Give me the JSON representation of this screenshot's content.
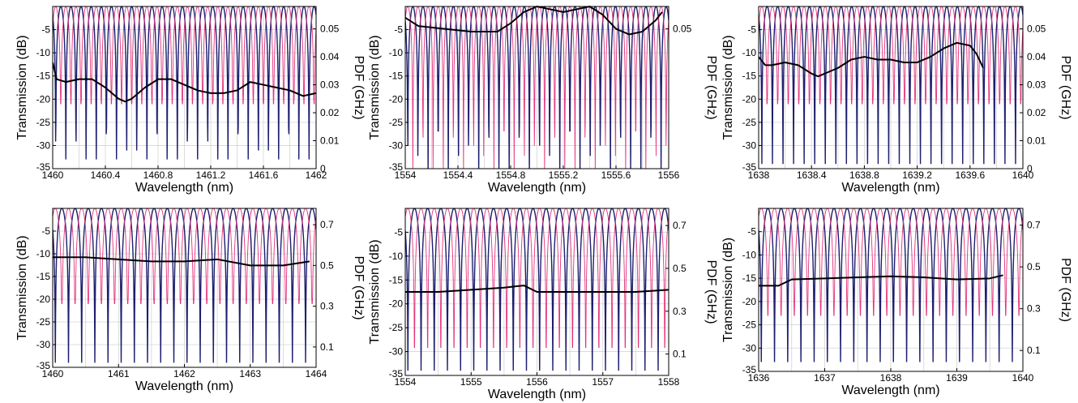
{
  "figure": {
    "colors": {
      "blue": "#1d1e6e",
      "pink": "#e3337a",
      "black": "#000000",
      "grid": "#d4d4d4"
    }
  },
  "chart_data": [
    {
      "type": "line",
      "xlabel": "Wavelength (nm)",
      "ylabel": "Transmission (dB)",
      "y2label": "PDF (GHz)",
      "xlim": [
        1460,
        1462
      ],
      "ylim": [
        -35,
        0
      ],
      "y2lim": [
        0,
        0.058
      ],
      "xticks": [
        1460,
        1460.4,
        1460.8,
        1461.2,
        1461.6,
        1462
      ],
      "xticklabels": [
        "1460",
        "1460.4",
        "1460.8",
        "1461.2",
        "1461.6",
        "1462"
      ],
      "yticks": [
        -5,
        -10,
        -15,
        -20,
        -25,
        -30,
        -35
      ],
      "yticklabels": [
        "-5",
        "-10",
        "-15",
        "-20",
        "-25",
        "-30",
        "-35"
      ],
      "y2ticks": [
        0,
        0.01,
        0.02,
        0.03,
        0.04,
        0.05
      ],
      "y2ticklabels": [
        "0",
        "0.01",
        "0.02",
        "0.03",
        "0.04",
        "0.05"
      ],
      "grid": true,
      "series": [
        {
          "color": "#1d1e6e",
          "axis": "left",
          "kind": "comb",
          "periods": 26,
          "phase": 0.2,
          "depth": -33
        },
        {
          "color": "#e3337a",
          "axis": "left",
          "kind": "comb",
          "periods": 26,
          "phase": 0.7,
          "depth": -21
        },
        {
          "color": "#000000",
          "axis": "right",
          "kind": "line",
          "x": [
            1460,
            1460.03,
            1460.1,
            1460.2,
            1460.3,
            1460.4,
            1460.5,
            1460.55,
            1460.6,
            1460.7,
            1460.8,
            1460.9,
            1461,
            1461.1,
            1461.2,
            1461.3,
            1461.4,
            1461.5,
            1461.6,
            1461.7,
            1461.8,
            1461.9,
            1462
          ],
          "y": [
            0.038,
            0.032,
            0.031,
            0.032,
            0.032,
            0.029,
            0.025,
            0.024,
            0.025,
            0.029,
            0.032,
            0.032,
            0.03,
            0.028,
            0.027,
            0.027,
            0.028,
            0.031,
            0.03,
            0.029,
            0.028,
            0.026,
            0.027
          ]
        }
      ]
    },
    {
      "type": "line",
      "xlabel": "Wavelength (nm)",
      "ylabel": "Transmission (dB)",
      "y2label": "PDF (GHz)",
      "xlim": [
        1554,
        1556
      ],
      "ylim": [
        -35,
        0
      ],
      "y2lim": [
        0,
        0.058
      ],
      "xticks": [
        1554,
        1554.4,
        1554.8,
        1555.2,
        1555.6,
        1556
      ],
      "xticklabels": [
        "1554",
        "1554.4",
        "1554.8",
        "1555.2",
        "1555.6",
        "1556"
      ],
      "yticks": [
        -5,
        -10,
        -15,
        -20,
        -25,
        -30,
        -35
      ],
      "yticklabels": [
        "-5",
        "-10",
        "-15",
        "-20",
        "-25",
        "-30",
        "-35"
      ],
      "y2ticks": [
        0.05
      ],
      "y2ticklabels": [
        "0.05"
      ],
      "grid": true,
      "series": [
        {
          "color": "#1d1e6e",
          "axis": "left",
          "kind": "comb",
          "periods": 26,
          "phase": 0.25,
          "depth": -36
        },
        {
          "color": "#e3337a",
          "axis": "left",
          "kind": "comb",
          "periods": 26,
          "phase": 0.75,
          "depth": -36
        },
        {
          "color": "#000000",
          "axis": "right",
          "kind": "line",
          "x": [
            1554,
            1554.1,
            1554.3,
            1554.5,
            1554.7,
            1554.8,
            1554.9,
            1555,
            1555.1,
            1555.2,
            1555.3,
            1555.4,
            1555.5,
            1555.6,
            1555.7,
            1555.8,
            1555.9,
            1555.95
          ],
          "y": [
            0.054,
            0.051,
            0.05,
            0.049,
            0.049,
            0.052,
            0.056,
            0.058,
            0.057,
            0.056,
            0.057,
            0.058,
            0.055,
            0.05,
            0.048,
            0.049,
            0.053,
            0.056
          ]
        }
      ]
    },
    {
      "type": "line",
      "xlabel": "Wavelength (nm)",
      "ylabel": "Transmission (dB)",
      "y2label": "PDF (GHz)",
      "xlim": [
        1638,
        1640
      ],
      "ylim": [
        -35,
        0
      ],
      "y2lim": [
        0,
        0.058
      ],
      "xticks": [
        1638,
        1638.4,
        1638.8,
        1639.2,
        1639.6,
        1640
      ],
      "xticklabels": [
        "1638",
        "1638.4",
        "1638.8",
        "1639.2",
        "1639.6",
        "1640"
      ],
      "yticks": [
        -5,
        -10,
        -15,
        -20,
        -25,
        -30,
        -35
      ],
      "yticklabels": [
        "-5",
        "-10",
        "-15",
        "-20",
        "-25",
        "-30",
        "-35"
      ],
      "y2ticks": [
        0,
        0.01,
        0.02,
        0.03,
        0.04,
        0.05
      ],
      "y2ticklabels": [
        "0",
        "0.01",
        "0.02",
        "0.03",
        "0.04",
        "0.05"
      ],
      "grid": true,
      "series": [
        {
          "color": "#1d1e6e",
          "axis": "left",
          "kind": "comb",
          "periods": 25,
          "phase": 0.2,
          "depth": -34
        },
        {
          "color": "#e3337a",
          "axis": "left",
          "kind": "comb",
          "periods": 25,
          "phase": 0.7,
          "depth": -21
        },
        {
          "color": "#000000",
          "axis": "right",
          "kind": "line",
          "x": [
            1638,
            1638.05,
            1638.1,
            1638.2,
            1638.3,
            1638.4,
            1638.45,
            1638.5,
            1638.6,
            1638.7,
            1638.8,
            1638.9,
            1639,
            1639.1,
            1639.2,
            1639.3,
            1639.4,
            1639.5,
            1639.6,
            1639.65,
            1639.7
          ],
          "y": [
            0.04,
            0.037,
            0.037,
            0.038,
            0.037,
            0.034,
            0.033,
            0.034,
            0.036,
            0.039,
            0.04,
            0.039,
            0.039,
            0.038,
            0.038,
            0.04,
            0.043,
            0.045,
            0.044,
            0.041,
            0.036
          ]
        }
      ]
    },
    {
      "type": "line",
      "xlabel": "Wavelength (nm)",
      "ylabel": "Transmission (dB)",
      "y2label": "PDF (GHz)",
      "xlim": [
        1460,
        1464
      ],
      "ylim": [
        -35,
        0
      ],
      "y2lim": [
        0,
        0.78
      ],
      "xticks": [
        1460,
        1461,
        1462,
        1463,
        1464
      ],
      "xticklabels": [
        "1460",
        "1461",
        "1462",
        "1463",
        "1464"
      ],
      "yticks": [
        -5,
        -10,
        -15,
        -20,
        -25,
        -30,
        -35
      ],
      "yticklabels": [
        "-5",
        "-10",
        "-15",
        "-20",
        "-25",
        "-30",
        "-35"
      ],
      "y2ticks": [
        0.1,
        0.3,
        0.5,
        0.7
      ],
      "y2ticklabels": [
        "0.1",
        "0.3",
        "0.5",
        "0.7"
      ],
      "grid": true,
      "series": [
        {
          "color": "#1d1e6e",
          "axis": "left",
          "kind": "comb",
          "periods": 20,
          "phase": 0.3,
          "depth": -34
        },
        {
          "color": "#e3337a",
          "axis": "left",
          "kind": "comb",
          "periods": 20,
          "phase": 0.8,
          "depth": -21
        },
        {
          "color": "#000000",
          "axis": "right",
          "kind": "line",
          "x": [
            1460,
            1460.5,
            1461,
            1461.5,
            1462,
            1462.5,
            1463,
            1463.5,
            1463.9
          ],
          "y": [
            0.54,
            0.54,
            0.53,
            0.52,
            0.52,
            0.53,
            0.5,
            0.5,
            0.52
          ]
        }
      ]
    },
    {
      "type": "line",
      "xlabel": "Wavelength (nm)",
      "ylabel": "Transmission (dB)",
      "y2label": "PDF (GHz)",
      "xlim": [
        1554,
        1558
      ],
      "ylim": [
        -35,
        0
      ],
      "y2lim": [
        0,
        0.78
      ],
      "xticks": [
        1554,
        1555,
        1556,
        1557,
        1558
      ],
      "xticklabels": [
        "1554",
        "1555",
        "1556",
        "1557",
        "1558"
      ],
      "yticks": [
        -5,
        -10,
        -15,
        -20,
        -25,
        -30,
        -35
      ],
      "yticklabels": [
        "-5",
        "-10",
        "-15",
        "-20",
        "-25",
        "-30",
        "-35"
      ],
      "y2ticks": [
        0.1,
        0.3,
        0.5,
        0.7
      ],
      "y2ticklabels": [
        "0.1",
        "0.3",
        "0.5",
        "0.7"
      ],
      "grid": true,
      "series": [
        {
          "color": "#1d1e6e",
          "axis": "left",
          "kind": "comb",
          "periods": 20,
          "phase": 0.3,
          "depth": -34
        },
        {
          "color": "#e3337a",
          "axis": "left",
          "kind": "comb",
          "periods": 20,
          "phase": 0.8,
          "depth": -34
        },
        {
          "color": "#000000",
          "axis": "right",
          "kind": "line",
          "x": [
            1554,
            1554.5,
            1555,
            1555.5,
            1555.8,
            1556,
            1556.5,
            1557,
            1557.5,
            1558
          ],
          "y": [
            0.39,
            0.39,
            0.4,
            0.41,
            0.42,
            0.39,
            0.39,
            0.39,
            0.39,
            0.4
          ]
        }
      ]
    },
    {
      "type": "line",
      "xlabel": "Wavelength (nm)",
      "ylabel": "Transmission (dB)",
      "y2label": "PDF (GHz)",
      "xlim": [
        1636,
        1640
      ],
      "ylim": [
        -35,
        0
      ],
      "y2lim": [
        0,
        0.78
      ],
      "xticks": [
        1636,
        1637,
        1638,
        1639,
        1640
      ],
      "xticklabels": [
        "1636",
        "1637",
        "1638",
        "1639",
        "1640"
      ],
      "yticks": [
        -5,
        -10,
        -15,
        -20,
        -25,
        -30,
        -35
      ],
      "yticklabels": [
        "-5",
        "-10",
        "-15",
        "-20",
        "-25",
        "-30",
        "-35"
      ],
      "y2ticks": [
        0.1,
        0.3,
        0.5,
        0.7
      ],
      "y2ticklabels": [
        "0.1",
        "0.3",
        "0.5",
        "0.7"
      ],
      "grid": true,
      "series": [
        {
          "color": "#1d1e6e",
          "axis": "left",
          "kind": "comb",
          "periods": 20,
          "phase": 0.3,
          "depth": -33
        },
        {
          "color": "#e3337a",
          "axis": "left",
          "kind": "comb",
          "periods": 20,
          "phase": 0.8,
          "depth": -23
        },
        {
          "color": "#000000",
          "axis": "right",
          "kind": "line",
          "x": [
            1636,
            1636.3,
            1636.5,
            1637,
            1637.5,
            1638,
            1638.5,
            1639,
            1639.5,
            1639.7
          ],
          "y": [
            0.41,
            0.41,
            0.44,
            0.445,
            0.45,
            0.455,
            0.45,
            0.44,
            0.445,
            0.46
          ]
        }
      ]
    }
  ]
}
